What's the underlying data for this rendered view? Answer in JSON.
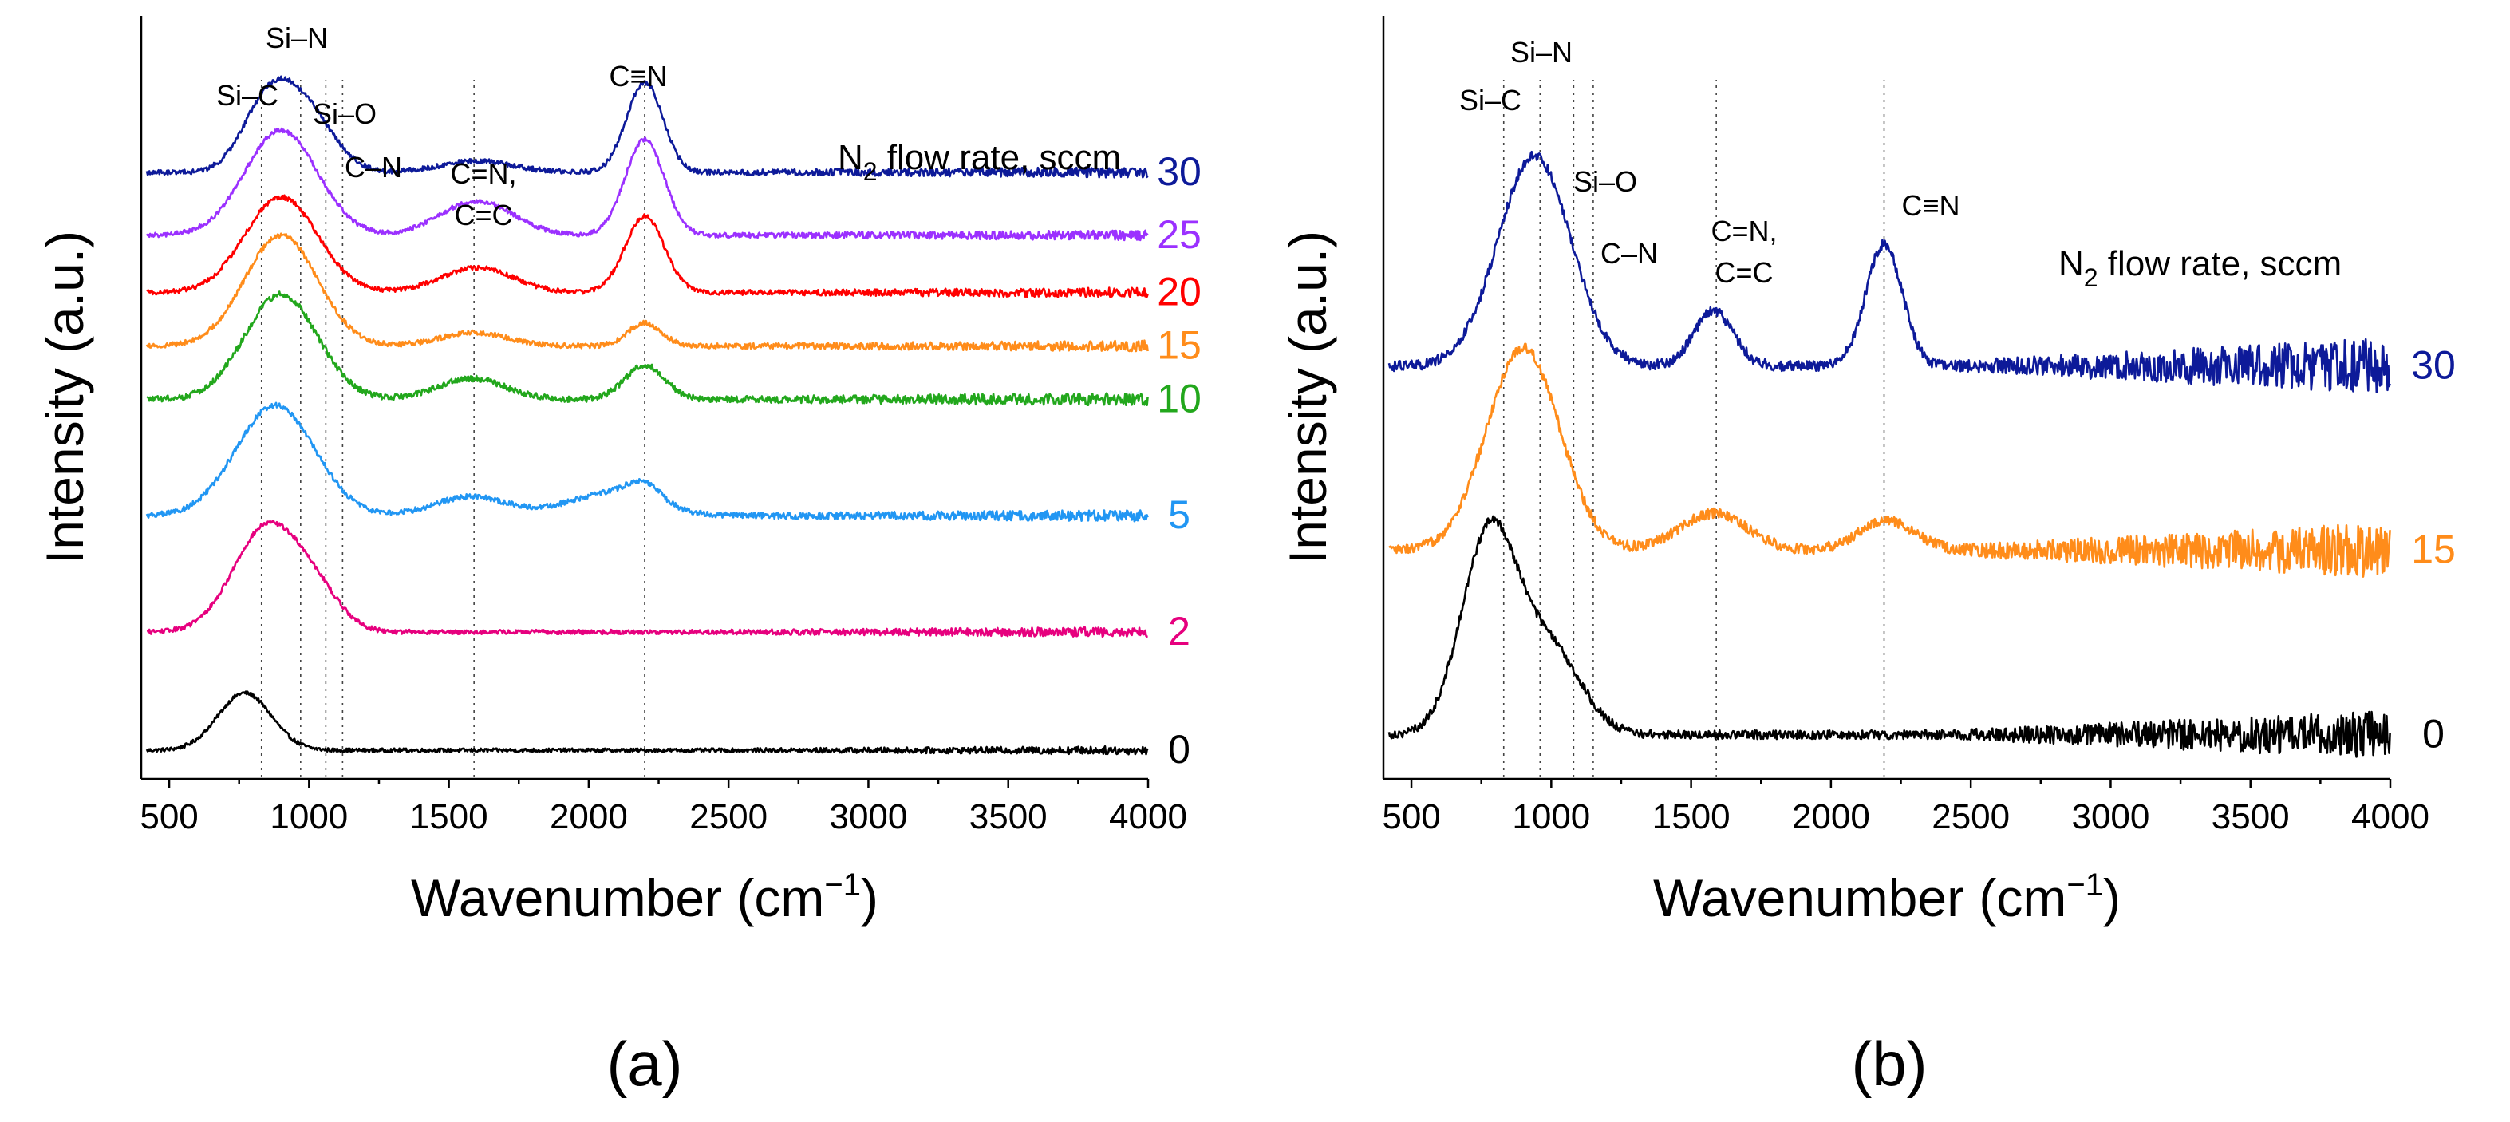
{
  "chart_data": [
    {
      "panel": "(a)",
      "type": "line",
      "xlabel": "Wavenumber (cm",
      "xlabel_sup": "−1",
      "xlabel_end": ")",
      "ylabel": "Intensity (a.u.)",
      "xlim": [
        400,
        4000
      ],
      "xticks": [
        "500",
        "1000",
        "1500",
        "2000",
        "2500",
        "3000",
        "3500",
        "4000"
      ],
      "legend_title": "N",
      "legend_title_sub": "2",
      "legend_title_rest": " flow rate, sccm",
      "annotations": [
        {
          "text": "Si–C",
          "x": 830
        },
        {
          "text": "Si–N",
          "x": 970
        },
        {
          "text": "Si–O",
          "x": 1060
        },
        {
          "text": "C–N",
          "x": 1120
        },
        {
          "text": "C=N,",
          "x": 1590
        },
        {
          "text": "C=C",
          "x": 1590
        },
        {
          "text": "C≡N",
          "x": 2200
        }
      ],
      "series": [
        {
          "name": "0",
          "color": "#000000",
          "offset": 0.0,
          "baseline": 0.0,
          "noise": 0.01,
          "peaks": [
            [
              770,
              0.3,
              95
            ]
          ]
        },
        {
          "name": "2",
          "color": "#e6007e",
          "offset": 0.62,
          "baseline": 0.0,
          "noise": 0.012,
          "peaks": [
            [
              850,
              0.55,
              120
            ],
            [
              1030,
              0.15,
              90
            ]
          ]
        },
        {
          "name": "5",
          "color": "#2196f3",
          "offset": 1.23,
          "baseline": 0.0,
          "noise": 0.014,
          "peaks": [
            [
              880,
              0.58,
              140
            ],
            [
              1580,
              0.1,
              130
            ],
            [
              2080,
              0.12,
              150
            ],
            [
              2200,
              0.09,
              60
            ]
          ]
        },
        {
          "name": "10",
          "color": "#22a71c",
          "offset": 1.84,
          "baseline": 0.0,
          "noise": 0.016,
          "peaks": [
            [
              900,
              0.55,
              130
            ],
            [
              1580,
              0.11,
              120
            ],
            [
              2200,
              0.18,
              70
            ]
          ]
        },
        {
          "name": "15",
          "color": "#ff8c1a",
          "offset": 2.12,
          "baseline": 0.0,
          "noise": 0.013,
          "peaks": [
            [
              900,
              0.58,
              130
            ],
            [
              1590,
              0.07,
              120
            ],
            [
              2200,
              0.12,
              60
            ]
          ]
        },
        {
          "name": "20",
          "color": "#ff0000",
          "offset": 2.4,
          "baseline": 0.0,
          "noise": 0.012,
          "peaks": [
            [
              900,
              0.5,
              130
            ],
            [
              1600,
              0.13,
              130
            ],
            [
              2200,
              0.4,
              70
            ]
          ]
        },
        {
          "name": "25",
          "color": "#9b30ff",
          "offset": 2.7,
          "baseline": 0.0,
          "noise": 0.012,
          "peaks": [
            [
              900,
              0.55,
              130
            ],
            [
              1600,
              0.18,
              130
            ],
            [
              2200,
              0.5,
              70
            ]
          ]
        },
        {
          "name": "30",
          "color": "#0d1a99",
          "offset": 3.03,
          "baseline": 0.0,
          "noise": 0.013,
          "peaks": [
            [
              850,
              0.34,
              90
            ],
            [
              990,
              0.3,
              100
            ],
            [
              1600,
              0.06,
              130
            ],
            [
              2200,
              0.47,
              65
            ]
          ]
        }
      ]
    },
    {
      "panel": "(b)",
      "type": "line",
      "xlabel": "Wavenumber (cm",
      "xlabel_sup": "−1",
      "xlabel_end": ")",
      "ylabel": "Intensity (a.u.)",
      "xlim": [
        400,
        4000
      ],
      "xticks": [
        "500",
        "1000",
        "1500",
        "2000",
        "2500",
        "3000",
        "3500",
        "4000"
      ],
      "legend_title": "N",
      "legend_title_sub": "2",
      "legend_title_rest": " flow rate, sccm",
      "annotations": [
        {
          "text": "Si–C",
          "x": 830
        },
        {
          "text": "Si–N",
          "x": 960
        },
        {
          "text": "Si–O",
          "x": 1080
        },
        {
          "text": "C–N",
          "x": 1150
        },
        {
          "text": "C=N,",
          "x": 1590
        },
        {
          "text": "C=C",
          "x": 1590
        },
        {
          "text": "C≡N",
          "x": 2190
        }
      ],
      "series": [
        {
          "name": "0",
          "color": "#000000",
          "offset": 0.0,
          "baseline": 0.0,
          "noise": 0.012,
          "peaks": [
            [
              780,
              0.55,
              100
            ],
            [
              1000,
              0.22,
              110
            ]
          ]
        },
        {
          "name": "15",
          "color": "#ff8c1a",
          "offset": 0.5,
          "baseline": 0.0,
          "noise": 0.014,
          "peaks": [
            [
              900,
              0.55,
              130
            ],
            [
              1580,
              0.1,
              120
            ],
            [
              2200,
              0.08,
              100
            ]
          ]
        },
        {
          "name": "30",
          "color": "#0d1a99",
          "offset": 1.0,
          "baseline": 0.0,
          "noise": 0.014,
          "peaks": [
            [
              940,
              0.57,
              130
            ],
            [
              1580,
              0.15,
              70
            ],
            [
              2190,
              0.33,
              65
            ]
          ]
        }
      ]
    }
  ]
}
